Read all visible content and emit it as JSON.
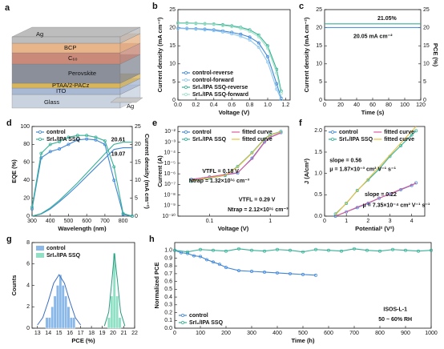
{
  "panel_a": {
    "label": "a",
    "layers": [
      "Ag",
      "BCP",
      "C₆₀",
      "Perovskite",
      "PTAA/2-PACz",
      "ITO",
      "Glass",
      "Ag"
    ]
  },
  "chart_data": [
    {
      "type": "line",
      "label": "b",
      "xlabel": "Voltage (V)",
      "ylabel": "Current density (mA cm⁻²)",
      "x": [
        0,
        0.1,
        0.2,
        0.3,
        0.4,
        0.5,
        0.6,
        0.7,
        0.8,
        0.9,
        1.0,
        1.1,
        1.15
      ],
      "xlim": [
        0,
        1.25
      ],
      "xticks": [
        {
          "value": 0,
          "label": "0.0"
        },
        0.2,
        0.4,
        0.6,
        0.8,
        {
          "value": 1,
          "label": "1.0"
        },
        1.2
      ],
      "ylim": [
        0,
        25
      ],
      "yticks": [
        0,
        5,
        10,
        15,
        20,
        25
      ],
      "legend": "lower left",
      "series": [
        {
          "name": "control-reverse",
          "color": "#3d85d6",
          "marker": "circle",
          "values": [
            19.9,
            19.8,
            19.7,
            19.6,
            19.4,
            19.1,
            18.7,
            18.2,
            17.4,
            15.8,
            12.0,
            4.5,
            0.5
          ]
        },
        {
          "name": "control-forward",
          "color": "#92c8f0",
          "marker": "circle",
          "values": [
            19.8,
            19.7,
            19.6,
            19.4,
            19.2,
            18.8,
            18.3,
            17.6,
            16.6,
            14.6,
            10.5,
            3.0,
            0.2
          ]
        },
        {
          "name": "SrI₂/IPA SSQ-reverse",
          "color": "#35b096",
          "marker": "circle",
          "values": [
            21.3,
            21.3,
            21.2,
            21.1,
            21.0,
            20.8,
            20.5,
            20.1,
            19.4,
            18.0,
            15.0,
            8.5,
            2.5
          ]
        },
        {
          "name": "SrI₂/IPA SSQ-forward",
          "color": "#9fe0c8",
          "marker": "circle",
          "values": [
            21.2,
            21.2,
            21.1,
            21.0,
            20.9,
            20.6,
            20.3,
            19.8,
            19.0,
            17.5,
            14.3,
            7.5,
            1.8
          ]
        }
      ]
    },
    {
      "type": "line",
      "label": "c",
      "xlabel": "Time (s)",
      "ylabel": "Current density (mA cm⁻²)",
      "y2label": "PCE (%)",
      "x": [
        0,
        20,
        40,
        60,
        80,
        100,
        120
      ],
      "xlim": [
        0,
        120
      ],
      "xticks": [
        0,
        20,
        40,
        60,
        80,
        100,
        120
      ],
      "ylim": [
        0,
        25
      ],
      "yticks": [
        0,
        5,
        10,
        15,
        20,
        25
      ],
      "y2lim": [
        0,
        25
      ],
      "y2ticks": [
        0,
        5,
        10,
        15,
        20,
        25
      ],
      "series": [
        {
          "color": "#3d85d6",
          "values": [
            20.05,
            20.05,
            20.05,
            20.05,
            20.05,
            20.05,
            20.05
          ]
        },
        {
          "color": "#35b096",
          "axis": "y2",
          "values": [
            21.05,
            21.05,
            21.05,
            21.05,
            21.05,
            21.05,
            21.05
          ]
        }
      ],
      "annotations": [
        {
          "text": "21.05%",
          "color": "#35b096"
        },
        {
          "text": "20.05 mA cm⁻²",
          "color": "#3d85d6"
        }
      ]
    },
    {
      "type": "line",
      "label": "d",
      "xlabel": "Wavelength (nm)",
      "ylabel": "EQE (%)",
      "y2label": "Current density (mA cm⁻²)",
      "x": [
        300,
        350,
        400,
        450,
        500,
        550,
        600,
        650,
        700,
        750,
        800,
        850
      ],
      "xlim": [
        300,
        850
      ],
      "xticks": [
        300,
        400,
        500,
        600,
        700,
        800
      ],
      "ylim": [
        0,
        100
      ],
      "yticks": [
        0,
        20,
        40,
        60,
        80,
        100
      ],
      "y2lim": [
        0,
        25
      ],
      "y2ticks": [
        0,
        5,
        10,
        15,
        20,
        25
      ],
      "legend": "upper left",
      "series": [
        {
          "name": "control",
          "color": "#3d85d6",
          "marker": "circle",
          "values": [
            8,
            65,
            72,
            75,
            80,
            85,
            86,
            85,
            80,
            40,
            2,
            0
          ]
        },
        {
          "name": "SrI₂/IPA SSQ",
          "color": "#35b096",
          "marker": "circle",
          "values": [
            10,
            70,
            80,
            83,
            88,
            90,
            90,
            88,
            84,
            55,
            3,
            0
          ]
        },
        {
          "color": "#3d85d6",
          "axis": "y2",
          "values": [
            0,
            0.6,
            2,
            4,
            6.2,
            8.6,
            11.1,
            13.6,
            16.1,
            18.6,
            19.07,
            19.07
          ]
        },
        {
          "color": "#35b096",
          "axis": "y2",
          "values": [
            0,
            0.7,
            2.3,
            4.4,
            6.8,
            9.3,
            12,
            14.7,
            17.4,
            20,
            20.61,
            20.61
          ]
        }
      ],
      "annotations": [
        {
          "text": "20.61",
          "color": "#35b096"
        },
        {
          "text": "19.07",
          "color": "#3d85d6"
        }
      ]
    },
    {
      "type": "line",
      "label": "e",
      "xlabel": "Voltage (V)",
      "ylabel": "Current (A)",
      "xlog": true,
      "ylog": true,
      "legend": "upper left",
      "legend_columns": 2,
      "x": [
        0.05,
        0.1,
        0.18,
        0.29,
        0.5,
        0.8,
        1,
        1.5
      ],
      "xlim": [
        0.03,
        2
      ],
      "xticks": [
        0.1,
        1
      ],
      "ylim": [
        1e-10,
        0.03
      ],
      "yticks": [
        {
          "value": 0.01,
          "label": "10⁻²"
        },
        {
          "value": 0.001,
          "label": "10⁻³"
        },
        {
          "value": 0.0001,
          "label": "10⁻⁴"
        },
        {
          "value": 1e-05,
          "label": "10⁻⁵"
        },
        {
          "value": 1e-06,
          "label": "10⁻⁶"
        },
        {
          "value": 1e-07,
          "label": "10⁻⁷"
        },
        {
          "value": 1e-08,
          "label": "10⁻⁸"
        },
        {
          "value": 1e-09,
          "label": "10⁻⁹"
        },
        {
          "value": 1e-10,
          "label": "10⁻¹⁰"
        }
      ],
      "series": [
        {
          "name": "control",
          "color": "#3d85d6",
          "marker": "circle",
          "values": [
            3e-07,
            5e-07,
            8e-07,
            1.2e-06,
            3e-05,
            0.001,
            0.003,
            0.008
          ]
        },
        {
          "name": "SrI₂/IPA SSQ",
          "color": "#35b096",
          "marker": "circle",
          "values": [
            2e-07,
            4e-07,
            7e-07,
            5e-06,
            0.0001,
            0.002,
            0.005,
            0.01
          ]
        },
        {
          "name": "fitted curve",
          "color": "#e05a9a",
          "values": [
            2.8e-07,
            5.2e-07,
            8.5e-07,
            1.3e-06,
            2.6e-05,
            0.0009,
            0.0028,
            0.0075
          ]
        },
        {
          "name": "fitted curve",
          "color": "#e8c040",
          "values": [
            2.2e-07,
            4.2e-07,
            7.2e-07,
            4.5e-06,
            9e-05,
            0.0018,
            0.0046,
            0.0095
          ]
        }
      ],
      "annotations": [
        {
          "text": "VTFL = 0.18 V",
          "color": "#1f9a80"
        },
        {
          "text": "Ntrap = 1.32×10¹⁶ cm⁻³",
          "color": "#1f9a80"
        },
        {
          "text": "VTFL = 0.29 V",
          "color": "#6a4fc0"
        },
        {
          "text": "Ntrap = 2.12×10¹⁶ cm⁻³",
          "color": "#3d6fc0"
        }
      ]
    },
    {
      "type": "line",
      "label": "f",
      "xlabel": "Potential² (V²)",
      "ylabel": "J (A/cm²)",
      "legend": "upper left",
      "legend_columns": 2,
      "x": [
        0.5,
        1,
        1.5,
        2,
        2.5,
        3,
        3.5,
        4,
        4.2
      ],
      "xlim": [
        0,
        4.6
      ],
      "xticks": [
        0,
        1,
        2,
        3,
        4
      ],
      "ylim": [
        0,
        2.1
      ],
      "yticks": [
        {
          "value": 0,
          "label": "0.0"
        },
        0.5,
        {
          "value": 1,
          "label": "1.0"
        },
        1.5,
        {
          "value": 2,
          "label": "2.0"
        }
      ],
      "series": [
        {
          "name": "control",
          "color": "#3d85d6",
          "marker": "circle",
          "values": [
            0.0,
            0.1,
            0.2,
            0.3,
            0.42,
            0.52,
            0.62,
            0.72,
            0.78
          ]
        },
        {
          "name": "SrI₂/IPA SSQ",
          "color": "#35b096",
          "marker": "circle",
          "values": [
            0.05,
            0.3,
            0.6,
            0.85,
            1.1,
            1.4,
            1.65,
            1.9,
            2.0
          ]
        },
        {
          "name": "fitted curve",
          "color": "#e05a9a",
          "values": [
            0.0,
            0.1,
            0.21,
            0.31,
            0.42,
            0.52,
            0.63,
            0.73,
            0.77
          ]
        },
        {
          "name": "fitted curve",
          "color": "#e8c040",
          "values": [
            0.03,
            0.31,
            0.59,
            0.87,
            1.15,
            1.43,
            1.71,
            1.99,
            2.1
          ]
        }
      ],
      "annotations": [
        {
          "text": "slope = 0.56",
          "color": "#1f9a80"
        },
        {
          "text": "μ = 1.87×10⁻³ cm² V⁻¹ s⁻¹",
          "color": "#1f9a80"
        },
        {
          "text": "slope = 0.22",
          "color": "#3d6fc0"
        },
        {
          "text": "μ = 7.35×10⁻⁴ cm² V⁻¹ s⁻¹",
          "color": "#3d6fc0"
        }
      ]
    },
    {
      "type": "histogram",
      "label": "g",
      "xlabel": "PCE (%)",
      "ylabel": "Counts",
      "legend": "upper left",
      "xlim": [
        12.5,
        22
      ],
      "xticks": [
        13,
        14,
        15,
        16,
        17,
        18,
        19,
        20,
        21,
        22
      ],
      "ylim": [
        0,
        8
      ],
      "yticks": [
        0,
        2,
        4,
        6,
        8
      ],
      "series": [
        {
          "name": "control",
          "color": "#8ab8e8",
          "line_color": "#3d6fc0",
          "bins": [
            13.75,
            14,
            14.25,
            14.5,
            14.75,
            15,
            15.25,
            15.5,
            15.75,
            16,
            16.25,
            16.5
          ],
          "counts": [
            1,
            1,
            2,
            3,
            4,
            5,
            4,
            3,
            2,
            1,
            1
          ],
          "fit_x": [
            13,
            13.5,
            14,
            14.5,
            15,
            15.5,
            16,
            16.5,
            17
          ],
          "fit_values": [
            0.3,
            1,
            2.5,
            4.2,
            5,
            4.2,
            2.5,
            1,
            0.3
          ]
        },
        {
          "name": "SrI₂/IPA SSQ",
          "color": "#8fe0c4",
          "line_color": "#2a9a80",
          "bins": [
            19.5,
            19.75,
            20,
            20.25,
            20.5,
            20.75
          ],
          "counts": [
            1,
            3,
            7,
            3,
            1
          ],
          "fit_x": [
            19.2,
            19.6,
            19.9,
            20.12,
            20.4,
            20.7,
            21.1
          ],
          "fit_values": [
            0.2,
            1.5,
            4.5,
            7,
            4.5,
            1.5,
            0.2
          ]
        }
      ]
    },
    {
      "type": "line",
      "label": "h",
      "xlabel": "Time (h)",
      "ylabel": "Normalized PCE",
      "legend": "lower left",
      "xlim": [
        0,
        1000
      ],
      "xticks": [
        0,
        100,
        200,
        300,
        400,
        500,
        600,
        700,
        800,
        900,
        1000
      ],
      "ylim": [
        0,
        1.1
      ],
      "yticks": [
        {
          "value": 0,
          "label": "0.0"
        },
        0.1,
        0.2,
        0.3,
        0.4,
        0.5,
        0.6,
        0.7,
        0.8,
        0.9,
        {
          "value": 1,
          "label": "1.0"
        }
      ],
      "series": [
        {
          "name": "control",
          "color": "#3d85d6",
          "marker": "circle",
          "x": [
            0,
            25,
            50,
            75,
            100,
            125,
            150,
            175,
            200,
            250,
            300,
            350,
            400,
            450,
            500,
            550
          ],
          "values": [
            1.0,
            0.97,
            0.96,
            0.93,
            0.92,
            0.88,
            0.85,
            0.82,
            0.78,
            0.74,
            0.73,
            0.72,
            0.71,
            0.7,
            0.69,
            0.68
          ]
        },
        {
          "name": "SrI₂/IPA SSQ",
          "color": "#35b096",
          "marker": "circle",
          "x": [
            0,
            50,
            100,
            150,
            200,
            250,
            300,
            350,
            400,
            450,
            500,
            550,
            600,
            650,
            700,
            750,
            800,
            850,
            900,
            950,
            1000
          ],
          "values": [
            1.0,
            0.98,
            1.01,
            1.0,
            0.99,
            1.02,
            1.0,
            0.99,
            1.01,
            1.0,
            0.98,
            1.01,
            1.0,
            0.99,
            1.02,
            1.0,
            0.99,
            1.01,
            1.0,
            0.99,
            1.0
          ]
        }
      ],
      "annotations": [
        {
          "text": "ISOS-L-1",
          "color": "#222"
        },
        {
          "text": "50 ~ 60% RH",
          "color": "#222"
        }
      ]
    }
  ]
}
